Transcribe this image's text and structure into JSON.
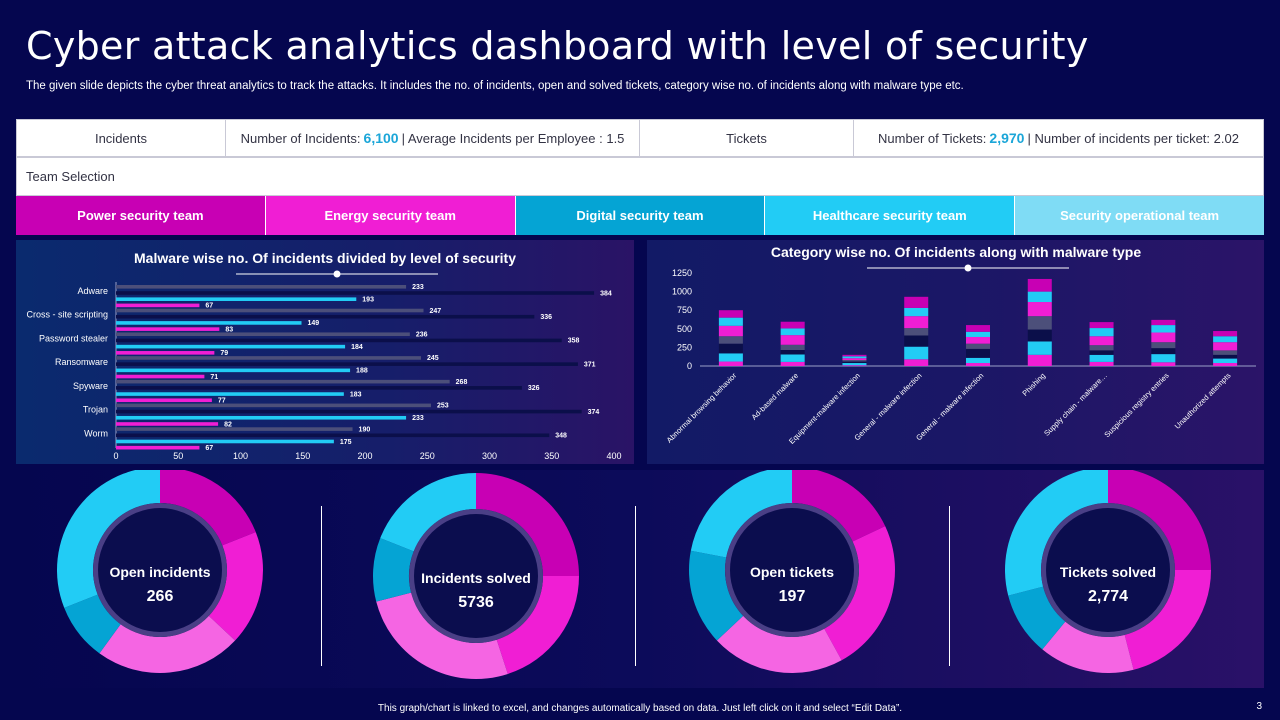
{
  "header": {
    "title": "Cyber attack analytics dashboard with level of security",
    "subtitle": "The given slide depicts the cyber threat analytics to track the attacks. It includes the no. of incidents, open and solved tickets, category wise no. of incidents along with malware type etc."
  },
  "kpis": {
    "incidents_label": "Incidents",
    "incidents_prefix": "Number of Incidents:",
    "incidents_value": "6,100",
    "incidents_suffix": "| Average  Incidents  per Employee : 1.5",
    "tickets_label": "Tickets",
    "tickets_prefix": "Number  of Tickets:",
    "tickets_value": "2,970",
    "tickets_suffix": "| Number  of incidents per ticket: 2.02"
  },
  "team_selection": {
    "label": "Team Selection",
    "teams": [
      {
        "label": "Power security team",
        "color": "#c800b4"
      },
      {
        "label": "Energy security team",
        "color": "#f01ed4"
      },
      {
        "label": "Digital security team",
        "color": "#05a4d4"
      },
      {
        "label": "Healthcare security team",
        "color": "#22ccf5"
      },
      {
        "label": "Security operational team",
        "color": "#7fdcf5"
      }
    ]
  },
  "colors": {
    "magenta_dark": "#c800b4",
    "magenta": "#f01ed4",
    "pink": "#f565e3",
    "cyan_dark": "#05a4d4",
    "cyan": "#22ccf5",
    "navy": "#0b0f4a",
    "gray": "#4c4f7a"
  },
  "chart_data": [
    {
      "type": "bar",
      "orientation": "horizontal",
      "title": "Malware wise no. Of incidents divided by level of security",
      "categories": [
        "Adware",
        "Cross - site scripting",
        "Password stealer",
        "Ransomware",
        "Spyware",
        "Trojan",
        "Worm"
      ],
      "series": [
        {
          "values": [
            233,
            247,
            236,
            245,
            268,
            253,
            190
          ],
          "color": "#4c4f7a"
        },
        {
          "values": [
            384,
            336,
            358,
            371,
            326,
            374,
            348
          ],
          "color": "#0b0f4a"
        },
        {
          "values": [
            193,
            149,
            184,
            188,
            183,
            233,
            175
          ],
          "color": "#22ccf5"
        },
        {
          "values": [
            67,
            83,
            79,
            71,
            77,
            82,
            67
          ],
          "color": "#f01ed4"
        }
      ],
      "xlim": [
        0,
        400
      ],
      "xticks": [
        0,
        50,
        100,
        150,
        200,
        250,
        300,
        350,
        400
      ],
      "grid": false
    },
    {
      "type": "bar",
      "stacked": true,
      "title": "Category wise no. Of incidents along with malware type",
      "categories": [
        "Abnormal browsing behavior",
        "Ad-based malware",
        "Equipment-malware infection",
        "General - malware infection",
        "General - malware infection",
        "Phishing",
        "Supply chain - malware…",
        "Suspicious registry entries",
        "Unauthorized attempts"
      ],
      "series": [
        {
          "values": [
            60,
            55,
            10,
            90,
            40,
            150,
            55,
            50,
            40
          ],
          "color": "#f01ed4"
        },
        {
          "values": [
            110,
            100,
            30,
            170,
            70,
            180,
            95,
            110,
            60
          ],
          "color": "#22ccf5"
        },
        {
          "values": [
            130,
            60,
            20,
            150,
            120,
            160,
            60,
            80,
            50
          ],
          "color": "#0b0f4a"
        },
        {
          "values": [
            100,
            70,
            20,
            100,
            70,
            180,
            70,
            80,
            60
          ],
          "color": "#4c4f7a"
        },
        {
          "values": [
            140,
            130,
            25,
            160,
            90,
            190,
            120,
            130,
            110
          ],
          "color": "#f01ed4"
        },
        {
          "values": [
            110,
            90,
            25,
            110,
            70,
            140,
            110,
            100,
            80
          ],
          "color": "#22ccf5"
        },
        {
          "values": [
            100,
            90,
            20,
            150,
            90,
            170,
            80,
            70,
            70
          ],
          "color": "#c800b4"
        }
      ],
      "ylim": [
        0,
        1250
      ],
      "yticks": [
        0,
        250,
        500,
        750,
        1000,
        1250
      ],
      "grid": false
    }
  ],
  "donuts": [
    {
      "label": "Open incidents",
      "value": "266",
      "segments": [
        0.19,
        0.18,
        0.23,
        0.09,
        0.31
      ]
    },
    {
      "label": "Incidents solved",
      "value": "5736",
      "segments": [
        0.25,
        0.2,
        0.26,
        0.1,
        0.19
      ]
    },
    {
      "label": "Open tickets",
      "value": "197",
      "segments": [
        0.18,
        0.24,
        0.21,
        0.15,
        0.22
      ]
    },
    {
      "label": "Tickets solved",
      "value": "2,774",
      "segments": [
        0.25,
        0.21,
        0.15,
        0.1,
        0.29
      ]
    }
  ],
  "donut_colors": [
    "#c800b4",
    "#f01ed4",
    "#f565e3",
    "#05a4d4",
    "#22ccf5"
  ],
  "footer": {
    "note": "This graph/chart is linked to excel, and changes automatically based on data. Just left click on it and select “Edit Data”.",
    "page": "3"
  }
}
